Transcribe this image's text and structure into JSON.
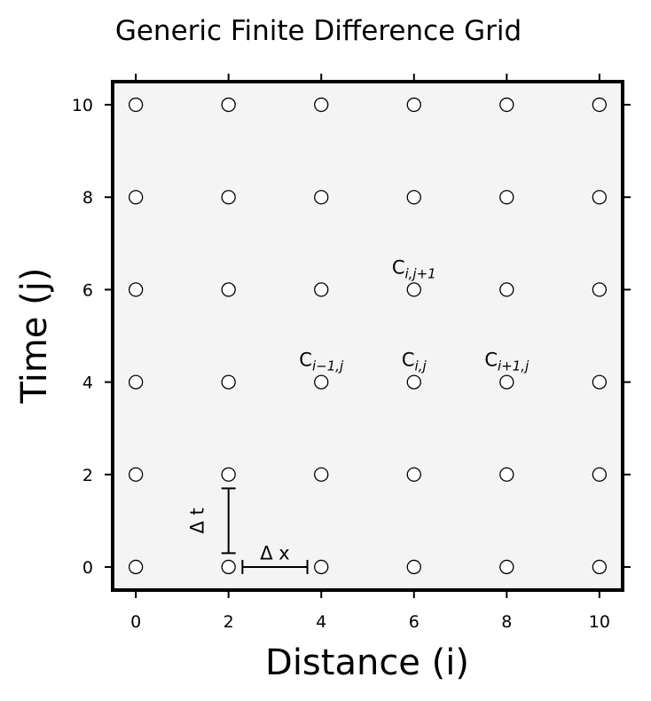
{
  "chart_data": {
    "type": "scatter",
    "title": "Generic Finite Difference Grid",
    "xlabel": "Distance (i)",
    "ylabel": "Time (j)",
    "xlim": [
      -0.5,
      10.5
    ],
    "ylim": [
      -0.5,
      10.5
    ],
    "xticks": [
      "0",
      "2",
      "4",
      "6",
      "8",
      "10"
    ],
    "yticks": [
      "0",
      "2",
      "4",
      "6",
      "8",
      "10"
    ],
    "grid": false,
    "background": "#f4f4f4",
    "marker": "open-circle",
    "x": [
      0,
      2,
      4,
      6,
      8,
      10
    ],
    "y": [
      0,
      2,
      4,
      6,
      8,
      10
    ],
    "annotations": [
      {
        "base": "C",
        "sub": "i,j+1",
        "x": 6,
        "y": 6.5
      },
      {
        "base": "C",
        "sub": "i−1,j",
        "x": 4,
        "y": 4.5
      },
      {
        "base": "C",
        "sub": "i,j",
        "x": 6,
        "y": 4.5
      },
      {
        "base": "C",
        "sub": "i+1,j",
        "x": 8,
        "y": 4.5
      }
    ],
    "step_markers": [
      {
        "label": "Δ x",
        "orientation": "horizontal",
        "from": [
          2.3,
          0
        ],
        "to": [
          3.7,
          0
        ],
        "label_at": [
          3,
          0.3
        ]
      },
      {
        "label": "Δ t",
        "orientation": "vertical",
        "from": [
          2,
          0.3
        ],
        "to": [
          2,
          1.7
        ],
        "label_at": [
          1.35,
          1
        ]
      }
    ]
  }
}
